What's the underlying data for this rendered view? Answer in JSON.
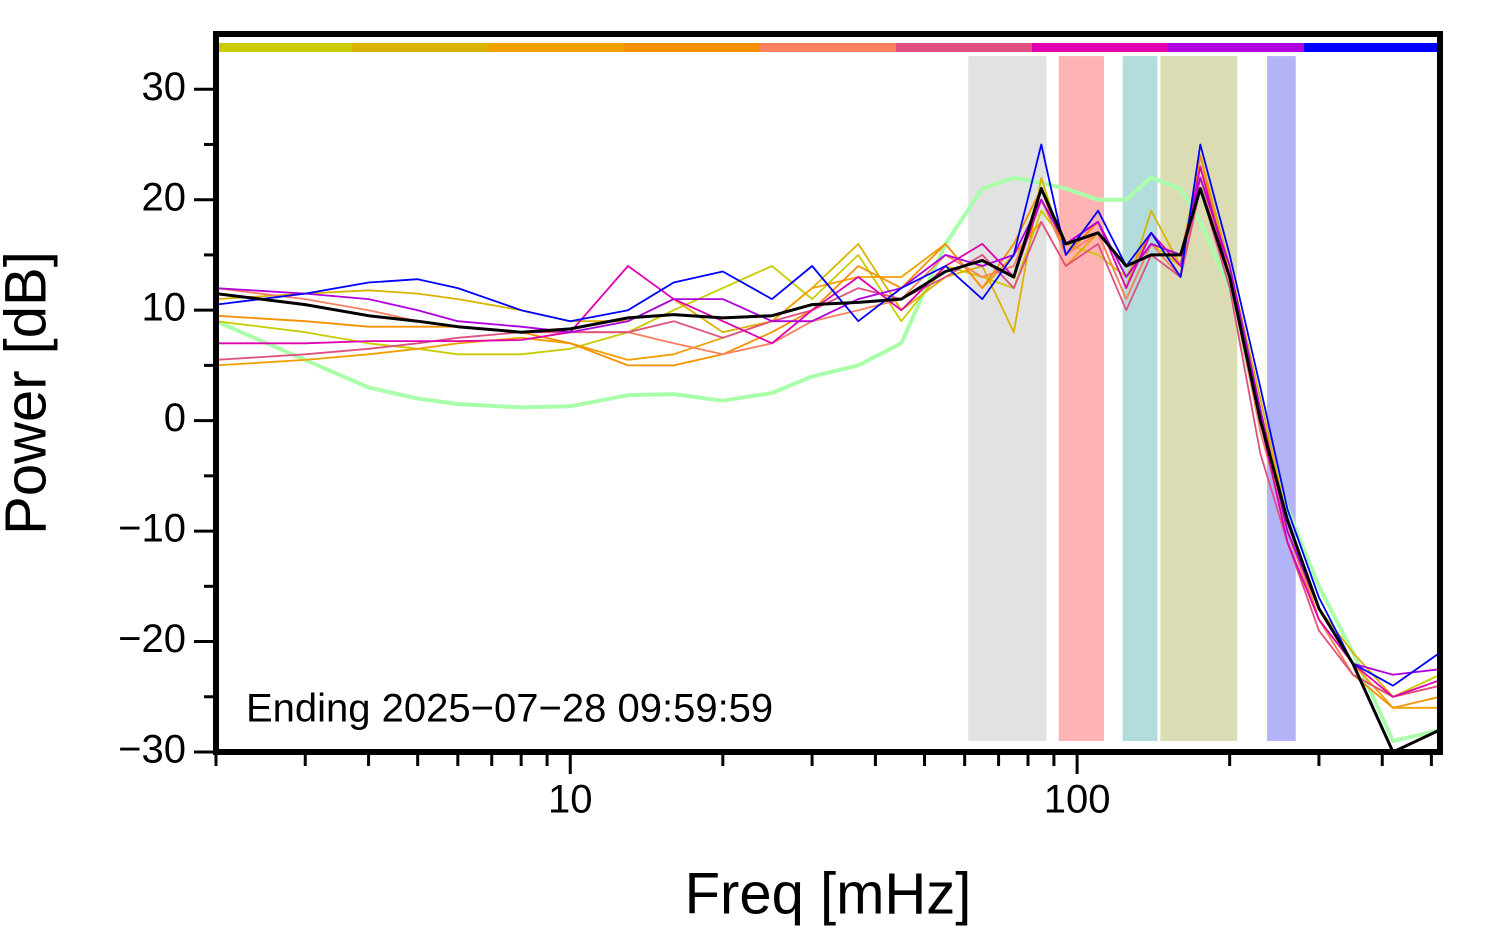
{
  "chart_data": {
    "type": "line",
    "annotation": "Ending 2025−07−28 09:59:59",
    "x_label": "Freq [mHz]",
    "y_label": "Power [dB]",
    "log_x": true,
    "xlim": [
      2,
      520
    ],
    "ylim": [
      -30,
      35
    ],
    "xticks": [
      10,
      100
    ],
    "xminor": [
      2,
      3,
      4,
      5,
      6,
      7,
      8,
      9,
      20,
      30,
      40,
      50,
      60,
      70,
      80,
      90,
      200,
      300,
      400,
      500
    ],
    "yticks": [
      {
        "value": -30,
        "label": "−30"
      },
      {
        "value": -20,
        "label": "−20"
      },
      {
        "value": -10,
        "label": "−10"
      },
      0,
      10,
      20,
      30
    ],
    "yminor": [
      -25,
      -15,
      -5,
      5,
      15,
      25
    ],
    "bands": [
      {
        "range": [
          61,
          87
        ],
        "color": "#e2e2e2"
      },
      {
        "range": [
          92,
          113
        ],
        "color": "#ffb3b3"
      },
      {
        "range": [
          123,
          144
        ],
        "color": "#b3dcdc"
      },
      {
        "range": [
          146,
          207
        ],
        "color": "#dcdcb4"
      },
      {
        "range": [
          237,
          270
        ],
        "color": "#b3b3f8"
      }
    ],
    "band_ylim": [
      -29,
      33
    ],
    "x": [
      2,
      3,
      4,
      5,
      6,
      8,
      10,
      13,
      16,
      20,
      25,
      30,
      37,
      45,
      55,
      65,
      75,
      85,
      95,
      110,
      125,
      140,
      160,
      175,
      200,
      230,
      260,
      300,
      350,
      420,
      520
    ],
    "series": [
      {
        "color": "#aaffaa",
        "linewidth": 4,
        "values": [
          9,
          5.5,
          3,
          2,
          1.5,
          1.2,
          1.3,
          2.3,
          2.4,
          1.8,
          2.5,
          4,
          5,
          7,
          16,
          21,
          22,
          21.5,
          21,
          20,
          20,
          22,
          21,
          18,
          12,
          0,
          -8,
          -15,
          -21,
          -29,
          -28
        ]
      },
      {
        "color": "#c8cc00",
        "linewidth": 1.8,
        "in_strip": true,
        "values": [
          9,
          8,
          7,
          6.5,
          6,
          6,
          6.5,
          8,
          10,
          12,
          14,
          11,
          15,
          9,
          14,
          13,
          12,
          19,
          16,
          15,
          13,
          16,
          14,
          22,
          14,
          1,
          -10,
          -18,
          -23,
          -25,
          -23
        ]
      },
      {
        "color": "#d8b400",
        "linewidth": 1.8,
        "in_strip": true,
        "values": [
          11,
          11.5,
          11.8,
          11.5,
          11,
          10,
          9,
          9,
          11,
          8,
          9,
          12,
          16,
          10,
          13,
          14,
          8,
          22,
          15,
          18,
          12,
          19,
          14,
          24,
          14,
          2,
          -9,
          -17,
          -21,
          -25,
          -24
        ]
      },
      {
        "color": "#f0a000",
        "linewidth": 1.8,
        "in_strip": true,
        "values": [
          5,
          5.5,
          6,
          6.5,
          7,
          7.5,
          7,
          5.5,
          6,
          7.5,
          9,
          12,
          13,
          13,
          16,
          12,
          15,
          18,
          14,
          17,
          11,
          16,
          15,
          23,
          14,
          0,
          -10,
          -17,
          -22,
          -26,
          -26
        ]
      },
      {
        "color": "#f59000",
        "linewidth": 1.8,
        "in_strip": true,
        "values": [
          9.5,
          9,
          8.5,
          8.5,
          8.5,
          8,
          7,
          5,
          5,
          6,
          8,
          10,
          14,
          12,
          16,
          12,
          16,
          21,
          15,
          18,
          13,
          17,
          14,
          24,
          13,
          1,
          -9,
          -18,
          -23,
          -26,
          -25
        ]
      },
      {
        "color": "#fa8060",
        "linewidth": 1.8,
        "in_strip": true,
        "values": [
          12,
          11,
          10,
          9,
          8.5,
          8,
          8,
          8,
          7,
          6,
          7,
          9,
          10,
          11,
          15,
          13,
          14,
          20,
          15,
          17,
          11,
          16,
          13,
          22,
          13,
          -1,
          -10,
          -18,
          -23,
          -25,
          -24
        ]
      },
      {
        "color": "#e05080",
        "linewidth": 1.8,
        "in_strip": true,
        "values": [
          5.5,
          6,
          6.5,
          7,
          7.5,
          8,
          8,
          8,
          9,
          7.5,
          9,
          10,
          12,
          11,
          13,
          15,
          12,
          18,
          14,
          16,
          10,
          15,
          13,
          21,
          12,
          -3,
          -11,
          -19,
          -23,
          -25,
          -24
        ]
      },
      {
        "color": "#e000b0",
        "linewidth": 1.8,
        "in_strip": true,
        "values": [
          7,
          7,
          7.2,
          7.2,
          7.2,
          7.3,
          8,
          14,
          11,
          9,
          7,
          10,
          13,
          10,
          14,
          16,
          13,
          20,
          16,
          18,
          12,
          17,
          14,
          23,
          13,
          0,
          -11,
          -18,
          -22,
          -25,
          -23.5
        ]
      },
      {
        "color": "#b000e0",
        "linewidth": 1.8,
        "in_strip": true,
        "values": [
          12,
          11.5,
          11,
          10,
          9,
          8.5,
          8,
          9,
          11,
          11,
          9,
          9,
          11,
          12,
          15,
          14,
          15,
          20,
          16,
          18,
          13,
          16,
          15,
          22,
          14,
          1,
          -10,
          -17,
          -22,
          -23,
          -22.5
        ]
      },
      {
        "color": "#0000ff",
        "linewidth": 1.8,
        "in_strip": true,
        "values": [
          10.5,
          11.5,
          12.5,
          12.8,
          12,
          10,
          9,
          10,
          12.5,
          13.5,
          11,
          14,
          9,
          12,
          14,
          11,
          15,
          25,
          15,
          19,
          14,
          17,
          13,
          25,
          15,
          3,
          -8,
          -16,
          -22,
          -24,
          -21
        ]
      },
      {
        "color": "#000000",
        "linewidth": 3,
        "values": [
          11.5,
          10.5,
          9.5,
          9,
          8.5,
          8,
          8.3,
          9.3,
          9.6,
          9.3,
          9.5,
          10.5,
          10.7,
          11,
          13.5,
          14.5,
          13,
          21,
          16,
          17,
          14,
          15,
          15,
          21,
          13,
          0,
          -9,
          -17,
          -22,
          -30,
          -28
        ]
      }
    ]
  }
}
